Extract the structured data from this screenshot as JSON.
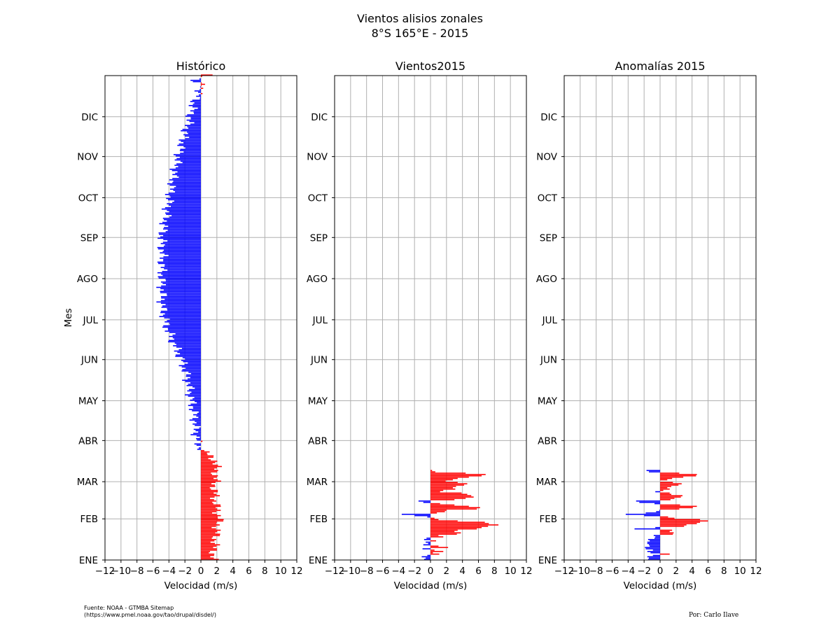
{
  "figure": {
    "title_line1": "Vientos alisios zonales",
    "title_line2": "8°S 165°E - 2015",
    "source_line1": "Fuente: NOAA - GTMBA Sitemap",
    "source_line2": "(https://www.pmel.noaa.gov/tao/drupal/disdel/)",
    "author": "Por: Carlo Ilave",
    "colors": {
      "positive": "#ff0000",
      "negative": "#0000ff",
      "grid": "#b0b0b0",
      "axis": "#000000"
    }
  },
  "chart_data": [
    {
      "type": "bar",
      "orientation": "horizontal",
      "title": "Histórico",
      "xlabel": "Velocidad (m/s)",
      "ylabel": "Mes",
      "xlim": [
        -12,
        12
      ],
      "ylim": [
        1,
        366
      ],
      "xticks": [
        -12,
        -10,
        -8,
        -6,
        -4,
        -2,
        0,
        2,
        4,
        6,
        8,
        10,
        12
      ],
      "month_labels": [
        "ENE",
        "FEB",
        "MAR",
        "ABR",
        "MAY",
        "JUN",
        "JUL",
        "AGO",
        "SEP",
        "OCT",
        "NOV",
        "DIC"
      ],
      "month_start_days": [
        1,
        32,
        60,
        91,
        121,
        152,
        182,
        213,
        244,
        274,
        305,
        335
      ],
      "grid": true,
      "profile": {
        "day": [
          1,
          10,
          20,
          32,
          45,
          55,
          65,
          75,
          83,
          88,
          96,
          110,
          121,
          135,
          150,
          160,
          175,
          190,
          213,
          230,
          244,
          255,
          274,
          290,
          305,
          320,
          335,
          345,
          352,
          358,
          362,
          366
        ],
        "value": [
          1.5,
          1.7,
          1.9,
          2.3,
          1.8,
          1.7,
          1.9,
          1.9,
          0.3,
          -0.4,
          -0.6,
          -0.8,
          -1.2,
          -1.6,
          -2.3,
          -3.1,
          -4.2,
          -4.8,
          -4.9,
          -4.8,
          -4.9,
          -4.5,
          -3.9,
          -3.4,
          -2.8,
          -2.1,
          -1.3,
          -0.9,
          -0.3,
          0.3,
          -1.2,
          1.6
        ]
      }
    },
    {
      "type": "bar",
      "orientation": "horizontal",
      "title": "Vientos2015",
      "xlabel": "Velocidad (m/s)",
      "xlim": [
        -12,
        12
      ],
      "ylim": [
        1,
        366
      ],
      "xticks": [
        -12,
        -10,
        -8,
        -6,
        -4,
        -2,
        0,
        2,
        4,
        6,
        8,
        10,
        12
      ],
      "month_labels": [
        "ENE",
        "FEB",
        "MAR",
        "ABR",
        "MAY",
        "JUN",
        "JUL",
        "AGO",
        "SEP",
        "OCT",
        "NOV",
        "DIC"
      ],
      "month_start_days": [
        1,
        32,
        60,
        91,
        121,
        152,
        182,
        213,
        244,
        274,
        305,
        335
      ],
      "grid": true,
      "days": [
        1,
        2,
        3,
        4,
        5,
        6,
        7,
        8,
        9,
        10,
        11,
        12,
        13,
        14,
        15,
        16,
        17,
        18,
        19,
        20,
        21,
        22,
        23,
        24,
        25,
        26,
        27,
        28,
        29,
        30,
        31,
        32,
        33,
        34,
        35,
        36,
        37,
        38,
        39,
        40,
        41,
        42,
        43,
        44,
        45,
        46,
        47,
        48,
        49,
        50,
        51,
        52,
        53,
        54,
        55,
        56,
        57,
        58,
        59,
        60,
        61,
        62,
        63,
        64,
        65,
        66,
        67,
        68
      ],
      "values": [
        -0.8,
        -0.6,
        -1.1,
        -0.4,
        1.1,
        0.3,
        1.6,
        0.5,
        -1.0,
        2.2,
        1.0,
        -0.9,
        -0.3,
        -0.6,
        0.7,
        -0.8,
        -0.5,
        1.6,
        1.0,
        3.3,
        3.8,
        3.0,
        3.4,
        5.8,
        6.4,
        7.2,
        8.5,
        7.3,
        6.8,
        3.4,
        1.0,
        0.5,
        -0.4,
        -2.0,
        -3.6,
        0.8,
        1.8,
        2.0,
        5.8,
        6.2,
        4.8,
        3.0,
        1.2,
        -0.9,
        -1.5,
        3.0,
        4.4,
        5.4,
        5.1,
        4.6,
        3.9,
        1.2,
        1.6,
        3.1,
        2.8,
        3.2,
        4.2,
        4.6,
        3.4,
        1.9,
        2.8,
        3.4,
        4.8,
        6.4,
        6.9,
        4.4,
        0.6,
        0.2
      ]
    },
    {
      "type": "bar",
      "orientation": "horizontal",
      "title": "Anomalías 2015",
      "xlabel": "Velocidad (m/s)",
      "xlim": [
        -12,
        12
      ],
      "ylim": [
        1,
        366
      ],
      "xticks": [
        -12,
        -10,
        -8,
        -6,
        -4,
        -2,
        0,
        2,
        4,
        6,
        8,
        10,
        12
      ],
      "month_labels": [
        "ENE",
        "FEB",
        "MAR",
        "ABR",
        "MAY",
        "JUN",
        "JUL",
        "AGO",
        "SEP",
        "OCT",
        "NOV",
        "DIC"
      ],
      "month_start_days": [
        1,
        32,
        60,
        91,
        121,
        152,
        182,
        213,
        244,
        274,
        305,
        335
      ],
      "grid": true,
      "days": [
        1,
        2,
        3,
        4,
        5,
        6,
        7,
        8,
        9,
        10,
        11,
        12,
        13,
        14,
        15,
        16,
        17,
        18,
        19,
        20,
        21,
        22,
        23,
        24,
        25,
        26,
        27,
        28,
        29,
        30,
        31,
        32,
        33,
        34,
        35,
        36,
        37,
        38,
        39,
        40,
        41,
        42,
        43,
        44,
        45,
        46,
        47,
        48,
        49,
        50,
        51,
        52,
        53,
        54,
        55,
        56,
        57,
        58,
        59,
        60,
        61,
        62,
        63,
        64,
        65,
        66,
        67,
        68
      ],
      "values": [
        -1.5,
        -1.4,
        -1.6,
        -0.9,
        1.2,
        -1.2,
        -1.6,
        -0.9,
        -1.8,
        -1.9,
        -1.3,
        -1.4,
        -1.6,
        -1.6,
        -1.3,
        -1.5,
        -0.7,
        -0.6,
        -0.8,
        1.6,
        1.7,
        1.2,
        1.5,
        -3.2,
        -0.6,
        3.0,
        3.3,
        4.6,
        5.0,
        6.0,
        5.0,
        1.8,
        1.0,
        -2.0,
        -4.3,
        -1.8,
        -0.5,
        -0.1,
        2.4,
        4.1,
        4.6,
        2.5,
        -0.7,
        -2.6,
        -3.0,
        1.3,
        1.8,
        2.6,
        2.8,
        1.4,
        1.2,
        -0.6,
        0.4,
        1.2,
        0.9,
        1.4,
        2.3,
        2.7,
        1.6,
        0.0,
        0.9,
        1.5,
        2.9,
        4.5,
        4.6,
        2.4,
        -1.4,
        -1.7
      ]
    }
  ]
}
